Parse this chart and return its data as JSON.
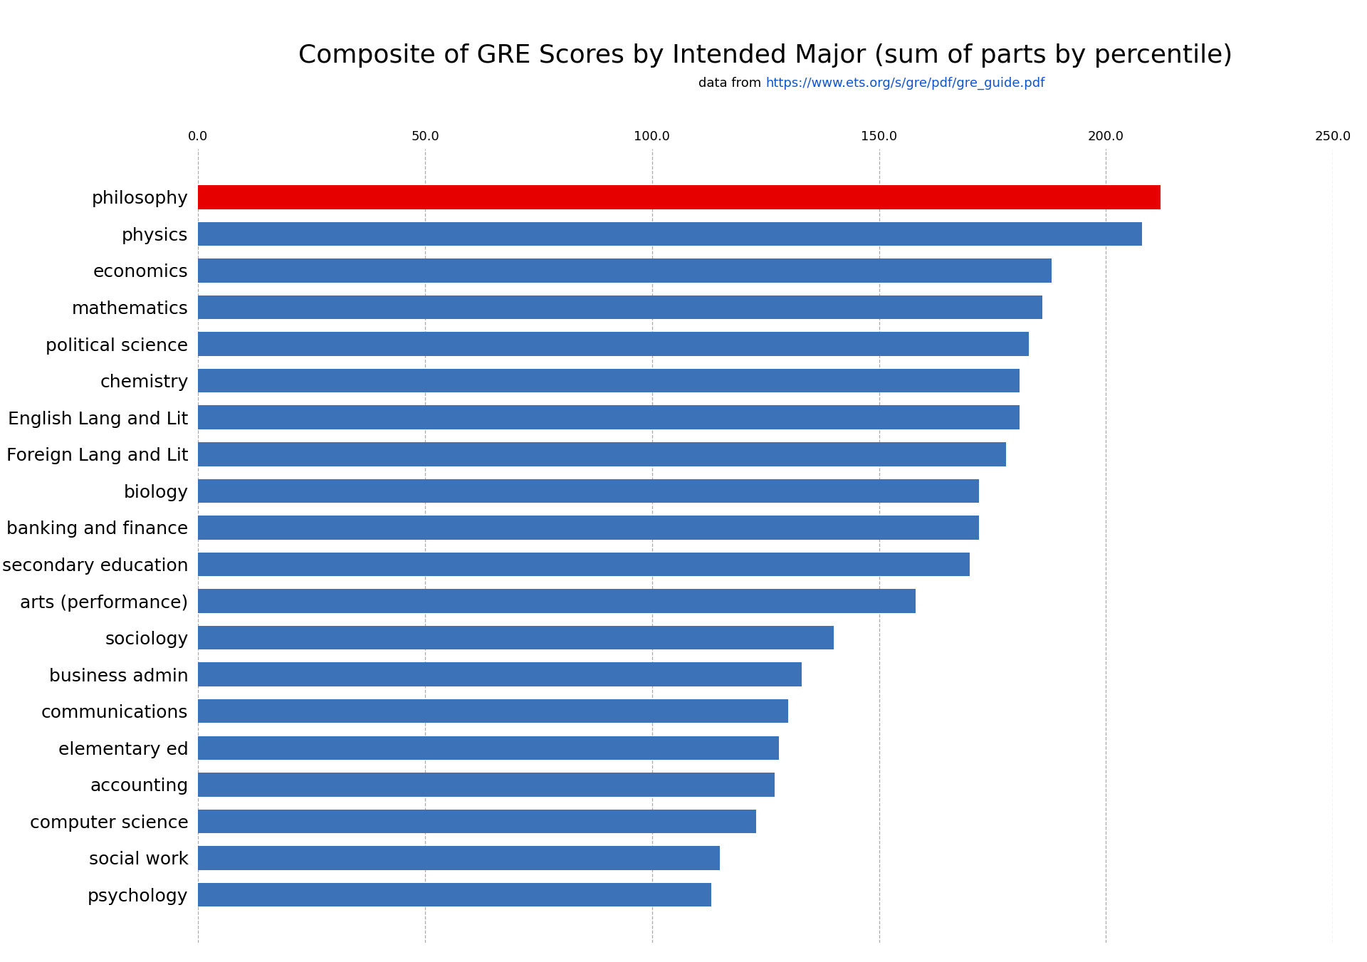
{
  "categories": [
    "psychology",
    "social work",
    "computer science",
    "accounting",
    "elementary ed",
    "communications",
    "business admin",
    "sociology",
    "arts (performance)",
    "secondary education",
    "banking and finance",
    "biology",
    "Foreign Lang and Lit",
    "English Lang and Lit",
    "chemistry",
    "political science",
    "mathematics",
    "economics",
    "physics",
    "philosophy"
  ],
  "values": [
    113,
    115,
    123,
    127,
    128,
    130,
    133,
    140,
    158,
    170,
    172,
    172,
    178,
    181,
    181,
    183,
    186,
    188,
    208,
    212
  ],
  "bar_colors": [
    "#3c72b8",
    "#3c72b8",
    "#3c72b8",
    "#3c72b8",
    "#3c72b8",
    "#3c72b8",
    "#3c72b8",
    "#3c72b8",
    "#3c72b8",
    "#3c72b8",
    "#3c72b8",
    "#3c72b8",
    "#3c72b8",
    "#3c72b8",
    "#3c72b8",
    "#3c72b8",
    "#3c72b8",
    "#3c72b8",
    "#3c72b8",
    "#e60000"
  ],
  "title": "Composite of GRE Scores by Intended Major (sum of parts by percentile)",
  "subtitle_plain": "data from ",
  "subtitle_link": "https://www.ets.org/s/gre/pdf/gre_guide.pdf",
  "xlim": [
    0,
    250
  ],
  "xticks": [
    0.0,
    50.0,
    100.0,
    150.0,
    200.0,
    250.0
  ],
  "background_color": "#ffffff",
  "grid_color": "#aaaaaa",
  "title_fontsize": 26,
  "subtitle_fontsize": 13,
  "tick_fontsize": 13,
  "label_fontsize": 18
}
